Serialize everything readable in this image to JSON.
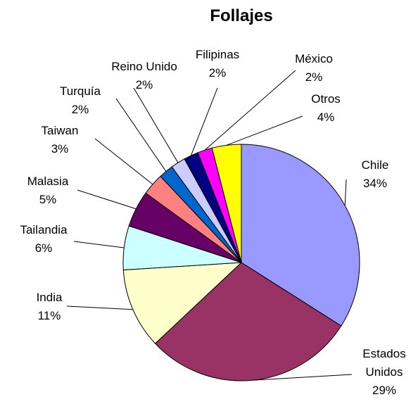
{
  "chart_data": {
    "type": "pie",
    "title": "Follajes",
    "categories": [
      "Chile",
      "Estados Unidos",
      "India",
      "Tailandia",
      "Malasia",
      "Taiwan",
      "Turquía",
      "Reino Unido",
      "Filipinas",
      "México",
      "Otros"
    ],
    "values": [
      34,
      29,
      11,
      6,
      5,
      3,
      2,
      2,
      2,
      2,
      4
    ],
    "value_labels": [
      "34%",
      "29%",
      "11%",
      "6%",
      "5%",
      "3%",
      "2%",
      "2%",
      "2%",
      "2%",
      "4%"
    ],
    "colors": [
      "#9999ff",
      "#993366",
      "#ffffcc",
      "#ccffff",
      "#660066",
      "#ff8080",
      "#0066cc",
      "#ccccff",
      "#000080",
      "#ff00ff",
      "#ffff00"
    ]
  }
}
